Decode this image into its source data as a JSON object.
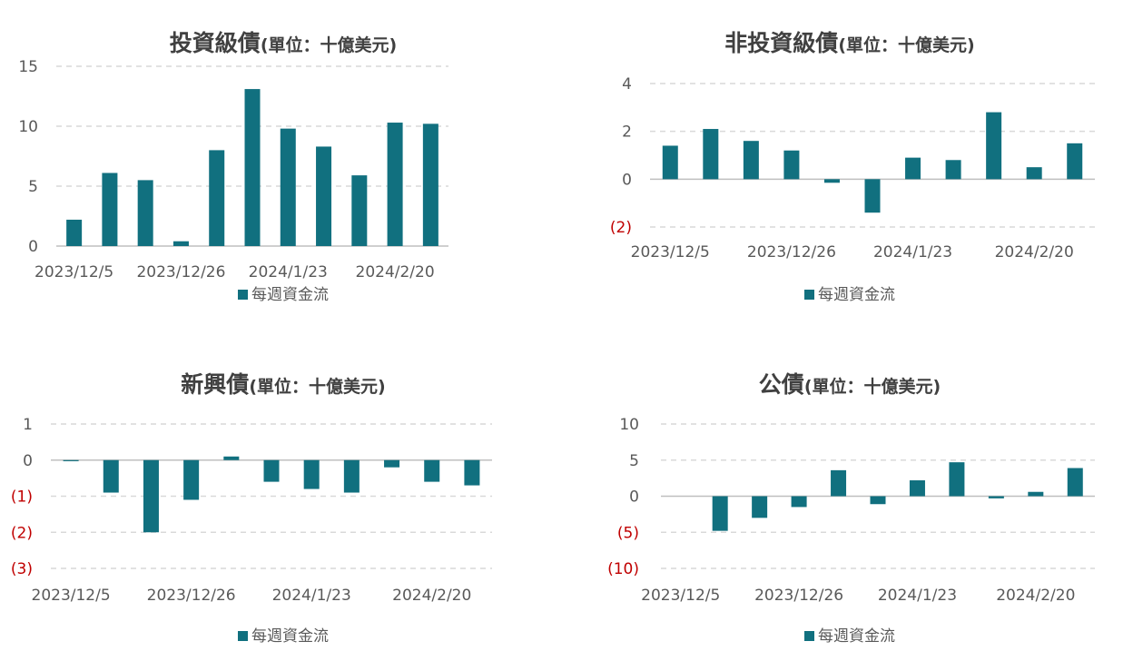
{
  "colors": {
    "bar": "#11707f",
    "axis_text": "#595959",
    "negative_text": "#c00000",
    "grid": "#d9d9d9",
    "title": "#404040"
  },
  "legend_label": "每週資金流",
  "charts": [
    {
      "title": "投資級債",
      "subtitle": "(單位：十億美元)",
      "chart_data": {
        "type": "bar",
        "x_tick_labels": [
          "2023/12/5",
          "2023/12/26",
          "2024/1/23",
          "2024/2/20"
        ],
        "series": [
          {
            "name": "每週資金流",
            "values": [
              2.2,
              6.1,
              5.5,
              0.4,
              8.0,
              13.1,
              9.8,
              8.3,
              5.9,
              10.3,
              10.2
            ]
          }
        ],
        "ylim": [
          0,
          15
        ],
        "y_ticks": [
          0,
          5,
          10,
          15
        ],
        "y_tick_labels": [
          "0",
          "5",
          "10",
          "15"
        ]
      }
    },
    {
      "title": "非投資級債",
      "subtitle": "(單位：十億美元)",
      "chart_data": {
        "type": "bar",
        "x_tick_labels": [
          "2023/12/5",
          "2023/12/26",
          "2024/1/23",
          "2024/2/20"
        ],
        "series": [
          {
            "name": "每週資金流",
            "values": [
              1.4,
              2.1,
              1.6,
              1.2,
              -0.15,
              -1.4,
              0.9,
              0.8,
              2.8,
              0.5,
              1.5
            ]
          }
        ],
        "ylim": [
          -2,
          4
        ],
        "y_ticks": [
          -2,
          0,
          2,
          4
        ],
        "y_tick_labels": [
          "(2)",
          "0",
          "2",
          "4"
        ]
      }
    },
    {
      "title": "新興債",
      "subtitle": "(單位：十億美元)",
      "chart_data": {
        "type": "bar",
        "x_tick_labels": [
          "2023/12/5",
          "2023/12/26",
          "2024/1/23",
          "2024/2/20"
        ],
        "series": [
          {
            "name": "每週資金流",
            "values": [
              -0.03,
              -0.9,
              -2.0,
              -1.1,
              0.1,
              -0.6,
              -0.8,
              -0.9,
              -0.2,
              -0.6,
              -0.7
            ]
          }
        ],
        "ylim": [
          -3,
          1
        ],
        "y_ticks": [
          -3,
          -2,
          -1,
          0,
          1
        ],
        "y_tick_labels": [
          "(3)",
          "(2)",
          "(1)",
          "0",
          "1"
        ]
      }
    },
    {
      "title": "公債",
      "subtitle": "(單位：十億美元)",
      "chart_data": {
        "type": "bar",
        "x_tick_labels": [
          "2023/12/5",
          "2023/12/26",
          "2024/1/23",
          "2024/2/20"
        ],
        "series": [
          {
            "name": "每週資金流",
            "values": [
              0,
              -4.8,
              -3.0,
              -1.5,
              3.6,
              -1.1,
              2.2,
              4.7,
              -0.3,
              0.6,
              3.9
            ]
          }
        ],
        "ylim": [
          -10,
          10
        ],
        "y_ticks": [
          -10,
          -5,
          0,
          5,
          10
        ],
        "y_tick_labels": [
          "(10)",
          "(5)",
          "0",
          "5",
          "10"
        ]
      }
    }
  ]
}
